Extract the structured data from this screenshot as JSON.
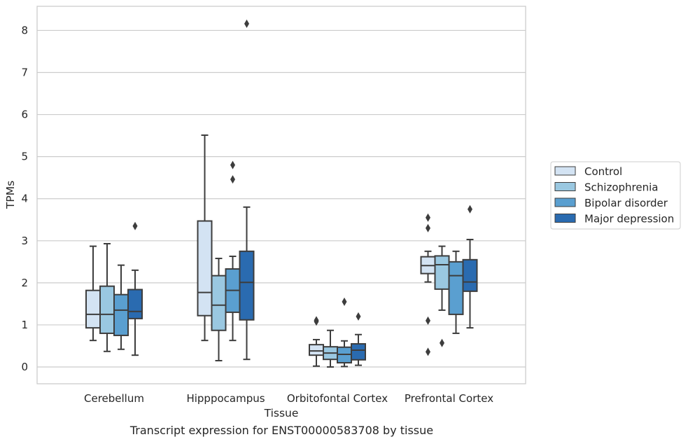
{
  "caption": "Transcript expression for ENST00000583708 by tissue",
  "chart_data": {
    "type": "boxplot",
    "xlabel": "Tissue",
    "ylabel": "TPMs",
    "ylim": [
      -0.4,
      8.58
    ],
    "yticks": [
      0,
      1,
      2,
      3,
      4,
      5,
      6,
      7,
      8
    ],
    "grid": "horizontal",
    "legend_placement": "right",
    "categories": [
      "Cerebellum",
      "Hipppocampus",
      "Orbitofontal Cortex",
      "Prefrontal Cortex"
    ],
    "series": [
      {
        "name": "Control",
        "color": "#d3e3f3",
        "boxes": [
          {
            "whislo": 0.63,
            "q1": 0.93,
            "med": 1.25,
            "q3": 1.82,
            "whishi": 2.87,
            "fliers": []
          },
          {
            "whislo": 0.63,
            "q1": 1.22,
            "med": 1.77,
            "q3": 3.47,
            "whishi": 5.51,
            "fliers": []
          },
          {
            "whislo": 0.02,
            "q1": 0.28,
            "med": 0.38,
            "q3": 0.53,
            "whishi": 0.65,
            "fliers": [
              1.08,
              1.11
            ]
          },
          {
            "whislo": 2.02,
            "q1": 2.22,
            "med": 2.41,
            "q3": 2.62,
            "whishi": 2.75,
            "fliers": [
              3.55,
              3.3,
              1.1,
              0.36
            ]
          }
        ]
      },
      {
        "name": "Schizophrenia",
        "color": "#9ac8e1",
        "boxes": [
          {
            "whislo": 0.37,
            "q1": 0.8,
            "med": 1.25,
            "q3": 1.92,
            "whishi": 2.93,
            "fliers": []
          },
          {
            "whislo": 0.15,
            "q1": 0.87,
            "med": 1.47,
            "q3": 2.17,
            "whishi": 2.58,
            "fliers": []
          },
          {
            "whislo": 0.0,
            "q1": 0.18,
            "med": 0.33,
            "q3": 0.48,
            "whishi": 0.87,
            "fliers": []
          },
          {
            "whislo": 1.35,
            "q1": 1.85,
            "med": 2.43,
            "q3": 2.64,
            "whishi": 2.87,
            "fliers": [
              0.57
            ]
          }
        ]
      },
      {
        "name": "Bipolar disorder",
        "color": "#5a9fd0",
        "boxes": [
          {
            "whislo": 0.42,
            "q1": 0.75,
            "med": 1.35,
            "q3": 1.72,
            "whishi": 2.42,
            "fliers": []
          },
          {
            "whislo": 0.63,
            "q1": 1.3,
            "med": 1.82,
            "q3": 2.33,
            "whishi": 2.63,
            "fliers": [
              4.8,
              4.46
            ]
          },
          {
            "whislo": 0.01,
            "q1": 0.1,
            "med": 0.3,
            "q3": 0.47,
            "whishi": 0.62,
            "fliers": [
              1.55
            ]
          },
          {
            "whislo": 0.8,
            "q1": 1.25,
            "med": 2.17,
            "q3": 2.5,
            "whishi": 2.75,
            "fliers": []
          }
        ]
      },
      {
        "name": "Major depression",
        "color": "#2a6bb0",
        "boxes": [
          {
            "whislo": 0.28,
            "q1": 1.15,
            "med": 1.32,
            "q3": 1.84,
            "whishi": 2.3,
            "fliers": [
              3.35
            ]
          },
          {
            "whislo": 0.18,
            "q1": 1.12,
            "med": 2.01,
            "q3": 2.75,
            "whishi": 3.8,
            "fliers": [
              8.16
            ]
          },
          {
            "whislo": 0.04,
            "q1": 0.17,
            "med": 0.4,
            "q3": 0.55,
            "whishi": 0.77,
            "fliers": [
              1.2
            ]
          },
          {
            "whislo": 0.93,
            "q1": 1.8,
            "med": 2.02,
            "q3": 2.55,
            "whishi": 3.03,
            "fliers": [
              3.75
            ]
          }
        ]
      }
    ]
  }
}
